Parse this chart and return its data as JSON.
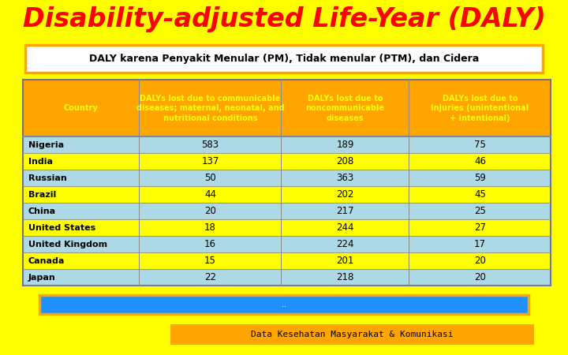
{
  "title": "Disability-adjusted Life-Year (DALY)",
  "subtitle": "DALY karena Penyakit Menular (PM), Tidak menular (PTM), dan Cidera",
  "col_headers": [
    "Country",
    "DALYs lost due to communicable\ndiseases; maternal, neonatal, and\nnutritional conditions",
    "DALYs lost due to\nnoncommunicable\ndiseases",
    "DALYs lost due to\ninjuries (unintentional\n+ intentional)"
  ],
  "rows": [
    [
      "Nigeria",
      "583",
      "189",
      "75"
    ],
    [
      "India",
      "137",
      "208",
      "46"
    ],
    [
      "Russian",
      "50",
      "363",
      "59"
    ],
    [
      "Brazil",
      "44",
      "202",
      "45"
    ],
    [
      "China",
      "20",
      "217",
      "25"
    ],
    [
      "United States",
      "18",
      "244",
      "27"
    ],
    [
      "United Kingdom",
      "16",
      "224",
      "17"
    ],
    [
      "Canada",
      "15",
      "201",
      "20"
    ],
    [
      "Japan",
      "22",
      "218",
      "20"
    ]
  ],
  "bg_color": "#FFFF00",
  "title_color": "#FF0000",
  "header_bg": "#FFA500",
  "header_text": "#FFFF00",
  "row_blue_bg": "#ADD8E6",
  "row_yellow_bg": "#FFFF00",
  "row_text": "#000000",
  "subtitle_box_border": "#FFA500",
  "subtitle_box_bg": "#FFFFFF",
  "footer_bar_bg": "#1E90FF",
  "footer_bar_border": "#FFA500",
  "footer_text_bg": "#FFA500",
  "footer_text": "Data Kesehatan Masyarakat & Komunikasi",
  "row_colors": [
    "blue",
    "yellow",
    "blue",
    "yellow",
    "blue",
    "yellow",
    "blue",
    "yellow",
    "blue"
  ]
}
